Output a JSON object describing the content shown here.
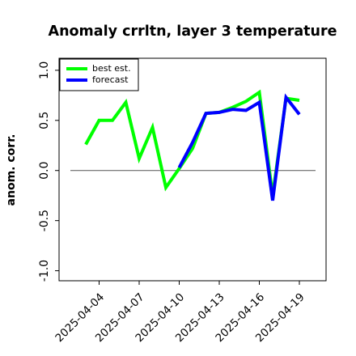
{
  "chart_data": {
    "type": "line",
    "title": "Anomaly crrltn, layer 3 temperature",
    "y_label": "anom. corr.",
    "x": [
      "2025-04-03",
      "2025-04-04",
      "2025-04-05",
      "2025-04-06",
      "2025-04-07",
      "2025-04-08",
      "2025-04-09",
      "2025-04-10",
      "2025-04-11",
      "2025-04-12",
      "2025-04-13",
      "2025-04-14",
      "2025-04-15",
      "2025-04-16",
      "2025-04-17",
      "2025-04-18",
      "2025-04-19"
    ],
    "series": [
      {
        "name": "best est.",
        "color": "#00ff00",
        "values": [
          0.26,
          0.5,
          0.5,
          0.68,
          0.12,
          0.43,
          -0.17,
          0.02,
          0.22,
          0.57,
          0.58,
          0.63,
          0.69,
          0.78,
          -0.25,
          0.72,
          0.7
        ]
      },
      {
        "name": "forecast",
        "color": "#0000ff",
        "values": [
          null,
          null,
          null,
          null,
          null,
          null,
          null,
          0.03,
          0.28,
          0.57,
          0.58,
          0.61,
          0.6,
          0.68,
          -0.3,
          0.73,
          0.56
        ]
      }
    ],
    "xlim": [
      "2025-04-01",
      "2025-04-21"
    ],
    "xticks": [
      "2025-04-04",
      "2025-04-07",
      "2025-04-10",
      "2025-04-13",
      "2025-04-16",
      "2025-04-19"
    ],
    "highlight_tick": 2,
    "highlight_color": "#228b22",
    "ylim": [
      -1.1,
      1.12
    ],
    "yticks": [
      {
        "value": -1,
        "label": "-1.0"
      },
      {
        "value": -0.5,
        "label": "-0.5"
      },
      {
        "value": 0,
        "label": "0.0"
      },
      {
        "value": 0.5,
        "label": "0.5"
      },
      {
        "value": 1,
        "label": "1.0"
      }
    ],
    "reference_line": 0,
    "legend": "upper left"
  }
}
